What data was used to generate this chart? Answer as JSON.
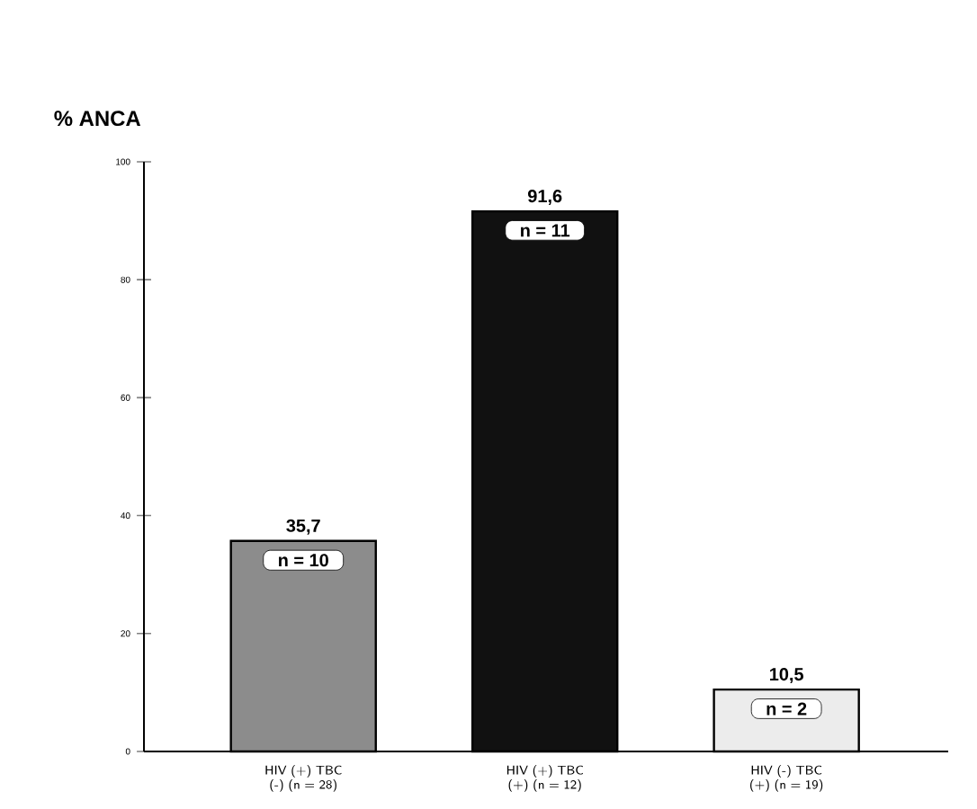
{
  "chart_data": {
    "type": "bar",
    "ylabel": "% ANCA",
    "categories": [
      "HIV (+) TBC (-) (n = 28)",
      "HIV (+) TBC (+) (n = 12)",
      "HIV (-) TBC (+) (n = 19)"
    ],
    "values": [
      35.7,
      91.6,
      10.5
    ],
    "colors": [
      "#8c8c8c",
      "#111111",
      "#ececec"
    ],
    "value_labels": [
      "35,7",
      "91,6",
      "10,5"
    ],
    "annotations": [
      "n = 10",
      "n = 11",
      "n = 2"
    ],
    "ylim": [
      0,
      100
    ],
    "yticks": [
      0,
      20,
      40,
      60,
      80,
      100
    ],
    "grid": false
  }
}
